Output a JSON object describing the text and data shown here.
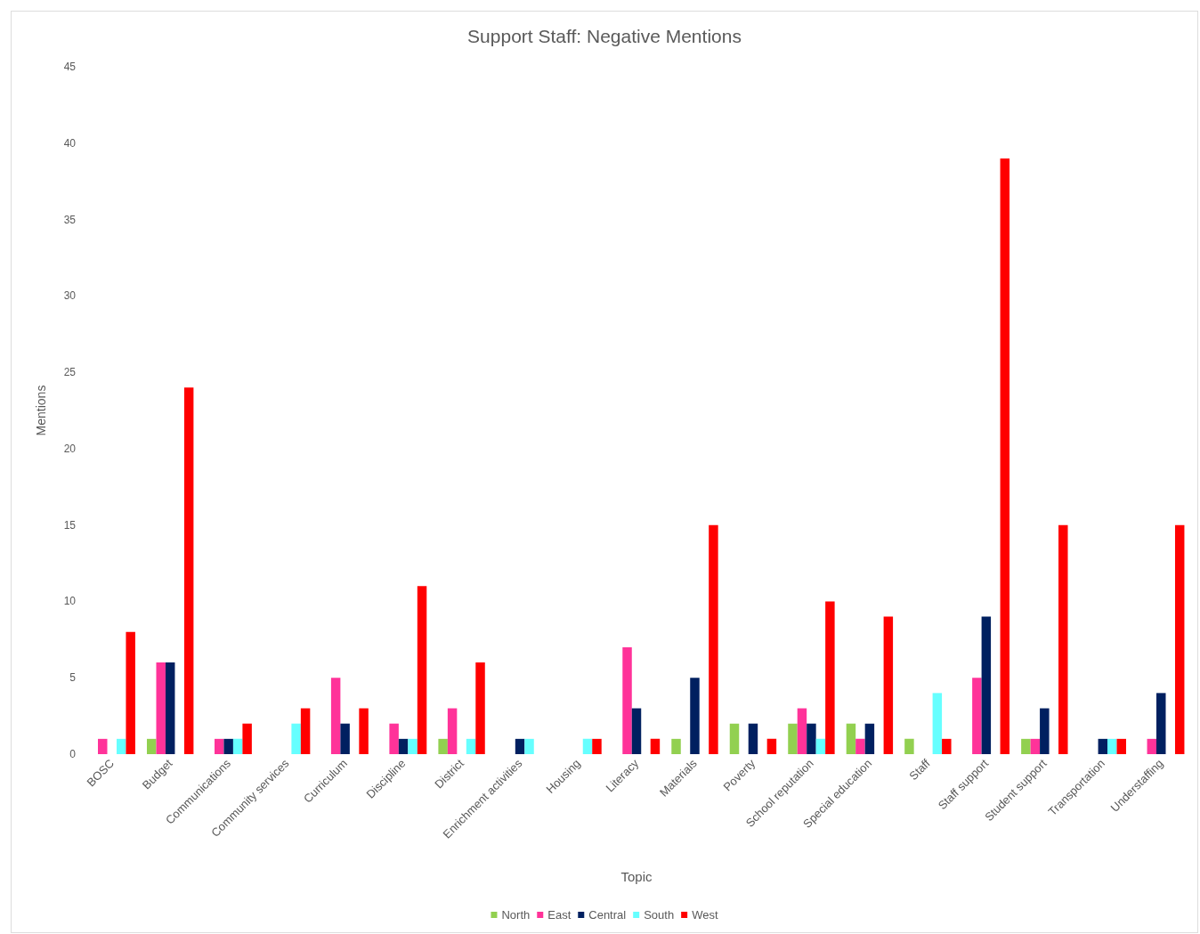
{
  "chart_data": {
    "type": "bar",
    "title": "Support Staff: Negative Mentions",
    "xlabel": "Topic",
    "ylabel": "Mentions",
    "categories": [
      "BOSC",
      "Budget",
      "Communications",
      "Community services",
      "Curriculum",
      "Discipline",
      "District",
      "Enrichment activities",
      "Housing",
      "Literacy",
      "Materials",
      "Poverty",
      "School reputation",
      "Special education",
      "Staff",
      "Staff support",
      "Student support",
      "Transportation",
      "Understaffing"
    ],
    "series": [
      {
        "name": "North",
        "color": "#92d050",
        "values": [
          0,
          1,
          0,
          0,
          0,
          0,
          1,
          0,
          0,
          0,
          1,
          2,
          2,
          2,
          1,
          0,
          1,
          0,
          0
        ]
      },
      {
        "name": "East",
        "color": "#ff3399",
        "values": [
          1,
          6,
          1,
          0,
          5,
          2,
          3,
          0,
          0,
          7,
          0,
          0,
          3,
          1,
          0,
          5,
          1,
          0,
          1
        ]
      },
      {
        "name": "Central",
        "color": "#002060",
        "values": [
          0,
          6,
          1,
          0,
          2,
          1,
          0,
          1,
          0,
          3,
          5,
          2,
          2,
          2,
          0,
          9,
          3,
          1,
          4
        ]
      },
      {
        "name": "South",
        "color": "#66ffff",
        "values": [
          1,
          0,
          1,
          2,
          0,
          1,
          1,
          1,
          1,
          0,
          0,
          0,
          1,
          0,
          4,
          0,
          0,
          1,
          0
        ]
      },
      {
        "name": "West",
        "color": "#ff0000",
        "values": [
          8,
          24,
          2,
          3,
          3,
          11,
          6,
          0,
          1,
          1,
          15,
          1,
          10,
          9,
          1,
          39,
          15,
          1,
          15
        ]
      }
    ],
    "ylim": [
      0,
      45
    ],
    "yticks": [
      0,
      5,
      10,
      15,
      20,
      25,
      30,
      35,
      40,
      45
    ],
    "grid": false,
    "legend": "bottom"
  }
}
